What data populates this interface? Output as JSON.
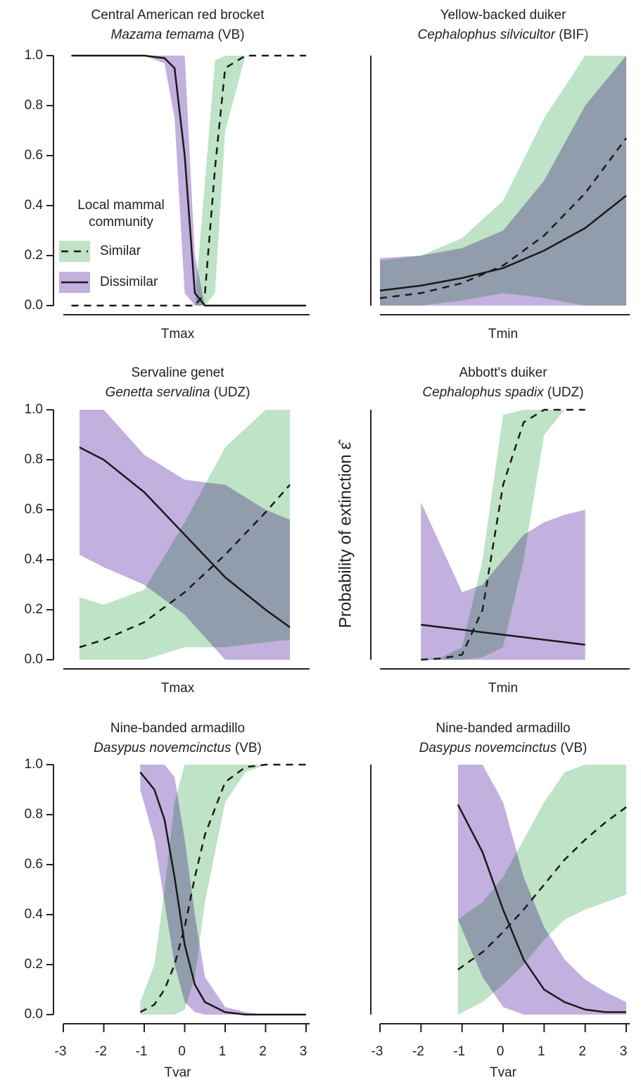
{
  "y_label": "Probability of extinction ε̂",
  "chart_data": [
    {
      "type": "line",
      "title": "Central American red brocket",
      "species": "Mazama temama",
      "source": "(VB)",
      "x_label": "Tmax",
      "xlim": [
        -3,
        3
      ],
      "ylim": [
        0,
        1
      ],
      "yticks": [
        {
          "value": 0,
          "label": "0.0"
        },
        0.2,
        0.4,
        0.6,
        0.8,
        {
          "value": 1,
          "label": "1.0"
        }
      ],
      "legend_title": [
        "Local mammal",
        "community"
      ],
      "x": [
        -2.8,
        -2,
        -1,
        -0.5,
        -0.25,
        0,
        0.25,
        0.5,
        0.75,
        1,
        1.5,
        2,
        3
      ],
      "series": [
        {
          "name": "Similar",
          "color": "#1a1a1a",
          "linestyle": "dashed",
          "band_color": "#bfe3c6",
          "values": [
            0,
            0,
            0,
            0,
            0,
            0,
            0,
            0.05,
            0.55,
            0.95,
            1,
            1,
            1
          ],
          "lower": [
            0,
            0,
            0,
            0,
            0,
            0,
            0,
            0,
            0.05,
            0.7,
            1,
            1,
            1
          ],
          "upper": [
            0,
            0,
            0,
            0,
            0,
            0,
            0,
            0.5,
            0.98,
            1,
            1,
            1,
            1
          ]
        },
        {
          "name": "Dissimilar",
          "color": "#1a1a1a",
          "linestyle": "solid",
          "band_color": "#c2b0de",
          "values": [
            1,
            1,
            1,
            0.99,
            0.95,
            0.6,
            0.05,
            0,
            0,
            0,
            0,
            0,
            0
          ],
          "lower": [
            1,
            1,
            1,
            0.97,
            0.75,
            0.05,
            0,
            0,
            0,
            0,
            0,
            0,
            0
          ],
          "upper": [
            1,
            1,
            1,
            1,
            1,
            1,
            0.2,
            0,
            0,
            0,
            0,
            0,
            0
          ]
        }
      ]
    },
    {
      "type": "line",
      "title": "Yellow-backed duiker",
      "species": "Cephalophus silvicultor",
      "source": "(BIF)",
      "x_label": "Tmin",
      "xlim": [
        -3,
        3
      ],
      "ylim": [
        0,
        1
      ],
      "x": [
        -3,
        -2,
        -1,
        0,
        1,
        2,
        3
      ],
      "series": [
        {
          "name": "Similar",
          "color": "#1a1a1a",
          "linestyle": "dashed",
          "band_color": "#bfe3c6",
          "values": [
            0.03,
            0.05,
            0.09,
            0.16,
            0.28,
            0.45,
            0.67
          ],
          "lower": [
            0,
            0,
            0.02,
            0.05,
            0.03,
            0,
            0
          ],
          "upper": [
            0.18,
            0.2,
            0.27,
            0.42,
            0.75,
            1,
            1
          ]
        },
        {
          "name": "Dissimilar",
          "color": "#1a1a1a",
          "linestyle": "solid",
          "band_color": "#c2b0de",
          "values": [
            0.06,
            0.08,
            0.11,
            0.15,
            0.22,
            0.31,
            0.44
          ],
          "lower": [
            0,
            0,
            0,
            0,
            0,
            0,
            0
          ],
          "upper": [
            0.19,
            0.2,
            0.23,
            0.3,
            0.5,
            0.8,
            1
          ]
        }
      ]
    },
    {
      "type": "line",
      "title": "Servaline genet",
      "species": "Genetta servalina",
      "source": "(UDZ)",
      "x_label": "Tmax",
      "xlim": [
        -3,
        3
      ],
      "ylim": [
        0,
        1
      ],
      "yticks": [
        {
          "value": 0,
          "label": "0.0"
        },
        0.2,
        0.4,
        0.6,
        0.8,
        {
          "value": 1,
          "label": "1.0"
        }
      ],
      "x": [
        -2.6,
        -2,
        -1,
        0,
        1,
        2,
        2.6
      ],
      "series": [
        {
          "name": "Similar",
          "color": "#1a1a1a",
          "linestyle": "dashed",
          "band_color": "#bfe3c6",
          "values": [
            0.05,
            0.08,
            0.15,
            0.27,
            0.42,
            0.59,
            0.7
          ],
          "lower": [
            0,
            0,
            0,
            0.05,
            0.05,
            0.07,
            0.08
          ],
          "upper": [
            0.25,
            0.22,
            0.28,
            0.55,
            0.85,
            1,
            1
          ]
        },
        {
          "name": "Dissimilar",
          "color": "#1a1a1a",
          "linestyle": "solid",
          "band_color": "#c2b0de",
          "values": [
            0.85,
            0.8,
            0.67,
            0.5,
            0.33,
            0.2,
            0.13
          ],
          "lower": [
            0.42,
            0.37,
            0.3,
            0.18,
            0,
            0,
            0
          ],
          "upper": [
            1,
            1,
            0.82,
            0.72,
            0.7,
            0.6,
            0.56
          ]
        }
      ]
    },
    {
      "type": "line",
      "title": "Abbott's duiker",
      "species": "Cephalophus spadix",
      "source": "(UDZ)",
      "x_label": "Tmin",
      "xlim": [
        -3,
        3
      ],
      "ylim": [
        0,
        1
      ],
      "x": [
        -2,
        -1.5,
        -1,
        -0.5,
        0,
        0.5,
        1,
        1.5,
        2
      ],
      "series": [
        {
          "name": "Similar",
          "color": "#1a1a1a",
          "linestyle": "dashed",
          "band_color": "#bfe3c6",
          "values": [
            0,
            0.005,
            0.02,
            0.2,
            0.7,
            0.95,
            1,
            1,
            1
          ],
          "lower": [
            0,
            0,
            0,
            0.01,
            0.05,
            0.4,
            0.9,
            1,
            1
          ],
          "upper": [
            0,
            0.01,
            0.05,
            0.4,
            0.98,
            1,
            1,
            1,
            1
          ]
        },
        {
          "name": "Dissimilar",
          "color": "#1a1a1a",
          "linestyle": "solid",
          "band_color": "#c2b0de",
          "values": [
            0.14,
            0.13,
            0.12,
            0.11,
            0.1,
            0.09,
            0.08,
            0.07,
            0.06
          ],
          "lower": [
            0,
            0,
            0,
            0,
            0,
            0,
            0,
            0,
            0
          ],
          "upper": [
            0.63,
            0.45,
            0.27,
            0.3,
            0.4,
            0.5,
            0.55,
            0.58,
            0.6
          ]
        }
      ]
    },
    {
      "type": "line",
      "title": "Nine-banded armadillo",
      "species": "Dasypus novemcinctus",
      "source": "(VB)",
      "x_label": "Tvar",
      "xlim": [
        -3,
        3
      ],
      "ylim": [
        0,
        1
      ],
      "yticks": [
        {
          "value": 0,
          "label": "0.0"
        },
        0.2,
        0.4,
        0.6,
        0.8,
        {
          "value": 1,
          "label": "1.0"
        }
      ],
      "xticks": [
        -3,
        -2,
        -1,
        0,
        1,
        2,
        3
      ],
      "x": [
        -1.1,
        -0.75,
        -0.5,
        -0.25,
        0,
        0.25,
        0.5,
        1,
        1.5,
        2,
        3
      ],
      "series": [
        {
          "name": "Similar",
          "color": "#1a1a1a",
          "linestyle": "dashed",
          "band_color": "#bfe3c6",
          "values": [
            0.01,
            0.04,
            0.1,
            0.2,
            0.35,
            0.55,
            0.72,
            0.93,
            0.99,
            1,
            1
          ],
          "lower": [
            0,
            0,
            0,
            0,
            0.02,
            0.15,
            0.45,
            0.85,
            0.97,
            1,
            1
          ],
          "upper": [
            0.05,
            0.2,
            0.5,
            0.85,
            1,
            1,
            1,
            1,
            1,
            1,
            1
          ]
        },
        {
          "name": "Dissimilar",
          "color": "#1a1a1a",
          "linestyle": "solid",
          "band_color": "#c2b0de",
          "values": [
            0.97,
            0.9,
            0.78,
            0.55,
            0.28,
            0.12,
            0.05,
            0.01,
            0,
            0,
            0
          ],
          "lower": [
            0.9,
            0.7,
            0.45,
            0.2,
            0.05,
            0.01,
            0,
            0,
            0,
            0,
            0
          ],
          "upper": [
            1,
            1,
            1,
            0.95,
            0.7,
            0.4,
            0.15,
            0.03,
            0.01,
            0,
            0
          ]
        }
      ]
    },
    {
      "type": "line",
      "title": "Nine-banded armadillo",
      "species": "Dasypus novemcinctus",
      "source": "(VB)",
      "x_label": "Tvar",
      "xlim": [
        -3,
        3
      ],
      "ylim": [
        0,
        1
      ],
      "xticks": [
        -3,
        -2,
        -1,
        0,
        1,
        2,
        3
      ],
      "x": [
        -1.1,
        -0.5,
        0,
        0.5,
        1,
        1.5,
        2,
        2.5,
        3
      ],
      "series": [
        {
          "name": "Similar",
          "color": "#1a1a1a",
          "linestyle": "dashed",
          "band_color": "#bfe3c6",
          "values": [
            0.18,
            0.25,
            0.33,
            0.42,
            0.52,
            0.62,
            0.7,
            0.77,
            0.83
          ],
          "lower": [
            0,
            0.05,
            0.12,
            0.2,
            0.3,
            0.38,
            0.42,
            0.45,
            0.48
          ],
          "upper": [
            0.38,
            0.45,
            0.55,
            0.7,
            0.85,
            0.97,
            1,
            1,
            1
          ]
        },
        {
          "name": "Dissimilar",
          "color": "#1a1a1a",
          "linestyle": "solid",
          "band_color": "#c2b0de",
          "values": [
            0.84,
            0.65,
            0.42,
            0.22,
            0.1,
            0.05,
            0.02,
            0.01,
            0.01
          ],
          "lower": [
            0.38,
            0.15,
            0.03,
            0,
            0,
            0,
            0,
            0,
            0
          ],
          "upper": [
            1,
            1,
            0.85,
            0.55,
            0.35,
            0.22,
            0.14,
            0.09,
            0.05
          ]
        }
      ]
    }
  ]
}
